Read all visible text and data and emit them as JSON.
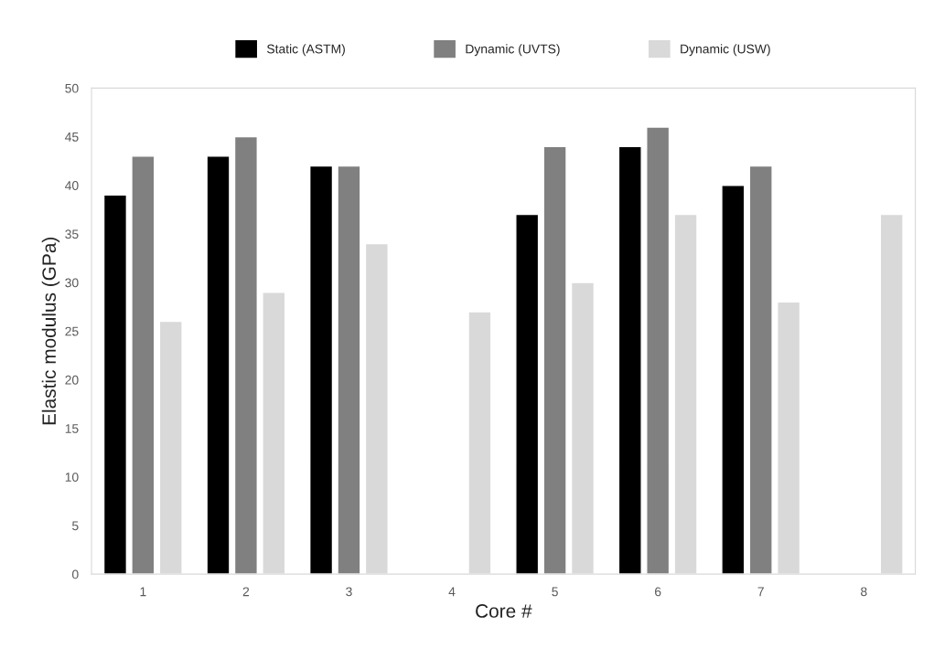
{
  "chart_data": {
    "type": "bar",
    "xlabel": "Core #",
    "ylabel": "Elastic modulus (GPa)",
    "categories": [
      "1",
      "2",
      "3",
      "4",
      "5",
      "6",
      "7",
      "8"
    ],
    "series": [
      {
        "name": "Static (ASTM)",
        "color": "#000000",
        "values": [
          39,
          43,
          42,
          null,
          37,
          44,
          40,
          null
        ]
      },
      {
        "name": "Dynamic (UVTS)",
        "color": "#808080",
        "values": [
          43,
          45,
          42,
          null,
          44,
          46,
          42,
          null
        ]
      },
      {
        "name": "Dynamic (USW)",
        "color": "#d9d9d9",
        "values": [
          26,
          29,
          34,
          27,
          30,
          37,
          28,
          37
        ]
      }
    ],
    "ylim": [
      0,
      50
    ],
    "yticks": [
      0,
      5,
      10,
      15,
      20,
      25,
      30,
      35,
      40,
      45,
      50
    ],
    "grid": false,
    "legend": "top"
  }
}
